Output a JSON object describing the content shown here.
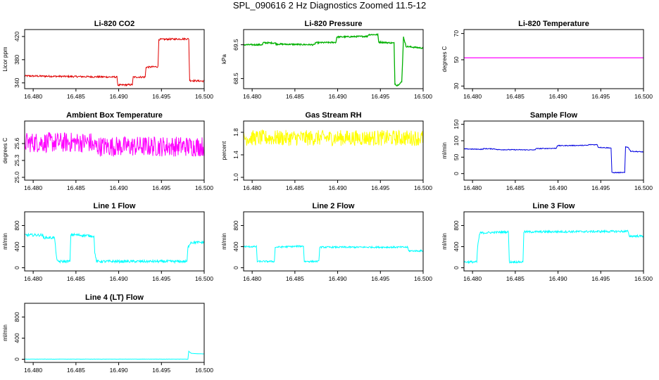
{
  "main_title": "SPL_090616  2 Hz Diagnostics Zoomed 11.5-12",
  "colors": {
    "red": "#e00000",
    "green": "#00b000",
    "magenta": "#ff00ff",
    "yellow": "#ffff00",
    "blue": "#0000e0",
    "cyan": "#00ffff"
  },
  "chart_data": [
    {
      "type": "line",
      "title": "Li-820 CO2",
      "ylabel": "Licor ppm",
      "color": "#e00000",
      "xlim": [
        16.479,
        16.5
      ],
      "ylim": [
        330,
        432
      ],
      "xticks": [
        16.48,
        16.485,
        16.49,
        16.495,
        16.5
      ],
      "xtick_labels": [
        "16.480",
        "16.485",
        "16.490",
        "16.495",
        "16.500"
      ],
      "yticks": [
        340,
        380,
        420
      ],
      "ytick_labels": [
        "340",
        "380",
        "420"
      ],
      "noise": 1.5,
      "series": [
        {
          "x": [
            16.479,
            16.4898,
            16.4899,
            16.4916,
            16.4917,
            16.4931,
            16.4932,
            16.4946,
            16.4947,
            16.4982,
            16.4983,
            16.5
          ],
          "y": [
            352,
            350,
            336,
            337,
            350,
            350,
            367,
            368,
            415,
            416,
            344,
            343
          ]
        }
      ]
    },
    {
      "type": "line",
      "title": "Li-820 Pressure",
      "ylabel": "kPa",
      "color": "#00b000",
      "xlim": [
        16.479,
        16.5
      ],
      "ylim": [
        68.2,
        69.95
      ],
      "xticks": [
        16.48,
        16.485,
        16.49,
        16.495,
        16.5
      ],
      "xtick_labels": [
        "16.480",
        "16.485",
        "16.490",
        "16.495",
        "16.500"
      ],
      "yticks": [
        68.5,
        69.5
      ],
      "ytick_labels": [
        "68.5",
        "69.5"
      ],
      "noise": 0.02,
      "series": [
        {
          "x": [
            16.479,
            16.4812,
            16.4813,
            16.4827,
            16.4828,
            16.4873,
            16.4874,
            16.4898,
            16.4899,
            16.4935,
            16.4936,
            16.4947,
            16.4948,
            16.4966,
            16.4967,
            16.4969,
            16.497,
            16.4975,
            16.4977,
            16.498,
            16.5
          ],
          "y": [
            69.5,
            69.5,
            69.56,
            69.55,
            69.52,
            69.5,
            69.56,
            69.57,
            69.73,
            69.75,
            69.8,
            69.8,
            69.58,
            69.55,
            68.35,
            68.3,
            68.3,
            68.4,
            69.73,
            69.45,
            69.4
          ]
        }
      ]
    },
    {
      "type": "line",
      "title": "Li-820 Temperature",
      "ylabel": "degrees C",
      "color": "#ff00ff",
      "xlim": [
        16.479,
        16.5
      ],
      "ylim": [
        28,
        73
      ],
      "xticks": [
        16.48,
        16.485,
        16.49,
        16.495,
        16.5
      ],
      "xtick_labels": [
        "16.480",
        "16.485",
        "16.490",
        "16.495",
        "16.500"
      ],
      "yticks": [
        30,
        50,
        70
      ],
      "ytick_labels": [
        "30",
        "50",
        "70"
      ],
      "noise": 0,
      "series": [
        {
          "x": [
            16.479,
            16.5
          ],
          "y": [
            51.5,
            51.5
          ]
        }
      ]
    },
    {
      "type": "line",
      "title": "Ambient Box Temperature",
      "ylabel": "degrees C",
      "color": "#ff00ff",
      "xlim": [
        16.479,
        16.5
      ],
      "ylim": [
        24.95,
        26.0
      ],
      "xticks": [
        16.48,
        16.485,
        16.49,
        16.495,
        16.5
      ],
      "xtick_labels": [
        "16.480",
        "16.485",
        "16.490",
        "16.495",
        "16.500"
      ],
      "yticks": [
        25.0,
        25.3,
        25.6
      ],
      "ytick_labels": [
        "25.0",
        "25.3",
        "25.6"
      ],
      "noise": 0.18,
      "series": [
        {
          "x": [
            16.479,
            16.4868,
            16.4869,
            16.5
          ],
          "y": [
            25.62,
            25.62,
            25.55,
            25.55
          ]
        }
      ]
    },
    {
      "type": "line",
      "title": "Gas Stream RH",
      "ylabel": "percent",
      "color": "#ffff00",
      "xlim": [
        16.479,
        16.5
      ],
      "ylim": [
        0.95,
        2.0
      ],
      "xticks": [
        16.48,
        16.485,
        16.49,
        16.495,
        16.5
      ],
      "xtick_labels": [
        "16.480",
        "16.485",
        "16.490",
        "16.495",
        "16.500"
      ],
      "yticks": [
        1.0,
        1.4,
        1.8
      ],
      "ytick_labels": [
        "1.0",
        "1.4",
        "1.8"
      ],
      "noise": 0.14,
      "series": [
        {
          "x": [
            16.479,
            16.5
          ],
          "y": [
            1.7,
            1.7
          ]
        }
      ]
    },
    {
      "type": "line",
      "title": "Sample Flow",
      "ylabel": "ml/min",
      "color": "#0000e0",
      "xlim": [
        16.479,
        16.5
      ],
      "ylim": [
        -20,
        160
      ],
      "xticks": [
        16.48,
        16.485,
        16.49,
        16.495,
        16.5
      ],
      "xtick_labels": [
        "16.480",
        "16.485",
        "16.490",
        "16.495",
        "16.500"
      ],
      "yticks": [
        0,
        50,
        100,
        150
      ],
      "ytick_labels": [
        "0",
        "50",
        "100",
        "150"
      ],
      "noise": 1.2,
      "series": [
        {
          "x": [
            16.479,
            16.4812,
            16.4813,
            16.4827,
            16.4828,
            16.4873,
            16.4874,
            16.4898,
            16.4899,
            16.4935,
            16.4936,
            16.4946,
            16.4947,
            16.4962,
            16.4963,
            16.4978,
            16.4979,
            16.4982,
            16.4985,
            16.5
          ],
          "y": [
            75,
            74,
            76,
            75,
            73,
            72,
            76,
            77,
            85,
            86,
            88,
            88,
            80,
            78,
            3,
            3,
            82,
            80,
            68,
            66
          ]
        }
      ]
    },
    {
      "type": "line",
      "title": "Line 1 Flow",
      "ylabel": "ml/min",
      "color": "#00ffff",
      "xlim": [
        16.479,
        16.5
      ],
      "ylim": [
        -60,
        1060
      ],
      "xticks": [
        16.48,
        16.485,
        16.49,
        16.495,
        16.5
      ],
      "xtick_labels": [
        "16.480",
        "16.485",
        "16.490",
        "16.495",
        "16.500"
      ],
      "yticks": [
        0,
        400,
        800
      ],
      "ytick_labels": [
        "0",
        "400",
        "800"
      ],
      "noise": 25,
      "series": [
        {
          "x": [
            16.479,
            16.4811,
            16.4812,
            16.4825,
            16.4826,
            16.4828,
            16.4829,
            16.4843,
            16.4844,
            16.4871,
            16.4872,
            16.4874,
            16.4875,
            16.498,
            16.4981,
            16.4984,
            16.5
          ],
          "y": [
            620,
            620,
            570,
            570,
            400,
            120,
            120,
            120,
            630,
            600,
            300,
            120,
            120,
            120,
            380,
            480,
            480
          ]
        }
      ]
    },
    {
      "type": "line",
      "title": "Line 2 Flow",
      "ylabel": "ml/min",
      "color": "#00ffff",
      "xlim": [
        16.479,
        16.5
      ],
      "ylim": [
        -60,
        1060
      ],
      "xticks": [
        16.48,
        16.485,
        16.49,
        16.495,
        16.5
      ],
      "xtick_labels": [
        "16.480",
        "16.485",
        "16.490",
        "16.495",
        "16.500"
      ],
      "yticks": [
        0,
        400,
        800
      ],
      "ytick_labels": [
        "0",
        "400",
        "800"
      ],
      "noise": 15,
      "series": [
        {
          "x": [
            16.479,
            16.4805,
            16.4806,
            16.4826,
            16.4827,
            16.486,
            16.4861,
            16.4878,
            16.4879,
            16.4982,
            16.4983,
            16.5
          ],
          "y": [
            400,
            400,
            120,
            120,
            390,
            410,
            120,
            120,
            390,
            390,
            320,
            320
          ]
        }
      ]
    },
    {
      "type": "line",
      "title": "Line 3 Flow",
      "ylabel": "ml/min",
      "color": "#00ffff",
      "xlim": [
        16.479,
        16.5
      ],
      "ylim": [
        -60,
        1060
      ],
      "xticks": [
        16.48,
        16.485,
        16.49,
        16.495,
        16.5
      ],
      "xtick_labels": [
        "16.480",
        "16.485",
        "16.490",
        "16.495",
        "16.500"
      ],
      "yticks": [
        0,
        400,
        800
      ],
      "ytick_labels": [
        "0",
        "400",
        "800"
      ],
      "noise": 20,
      "series": [
        {
          "x": [
            16.479,
            16.4805,
            16.4806,
            16.4808,
            16.4809,
            16.4842,
            16.4843,
            16.4859,
            16.486,
            16.4982,
            16.4983,
            16.5
          ],
          "y": [
            110,
            110,
            400,
            620,
            660,
            680,
            110,
            110,
            680,
            690,
            600,
            600
          ]
        }
      ]
    },
    {
      "type": "line",
      "title": "Line 4 (LT) Flow",
      "ylabel": "ml/min",
      "color": "#00ffff",
      "xlim": [
        16.479,
        16.5
      ],
      "ylim": [
        -60,
        1060
      ],
      "xticks": [
        16.48,
        16.485,
        16.49,
        16.495,
        16.5
      ],
      "xtick_labels": [
        "16.480",
        "16.485",
        "16.490",
        "16.495",
        "16.500"
      ],
      "yticks": [
        0,
        400,
        800
      ],
      "ytick_labels": [
        "0",
        "400",
        "800"
      ],
      "noise": 2,
      "series": [
        {
          "x": [
            16.479,
            16.4981,
            16.4982,
            16.4985,
            16.5
          ],
          "y": [
            2,
            2,
            150,
            110,
            100
          ]
        }
      ]
    }
  ]
}
